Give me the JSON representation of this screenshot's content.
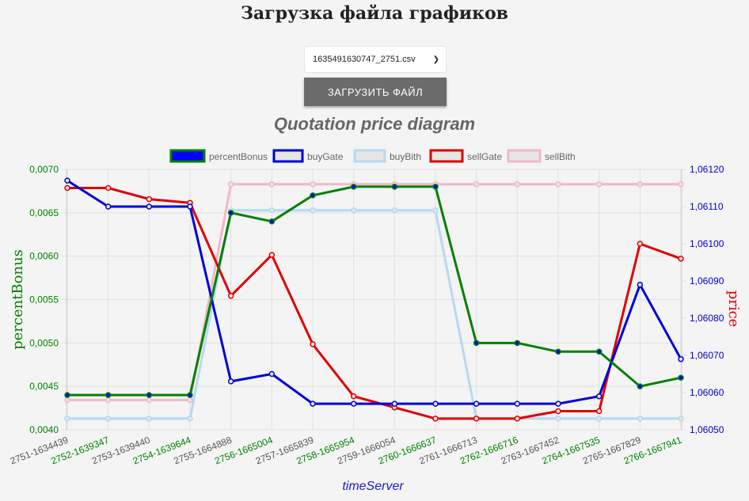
{
  "page": {
    "title": "Загрузка файла графиков",
    "file_select_value": "1635491630747_2751.csv",
    "upload_button_label": "ЗАГРУЗИТЬ ФАЙЛ"
  },
  "chart_data": {
    "type": "line",
    "title": "Quotation price diagram",
    "xlabel": "timeServer",
    "ylabel_left": "percentBonus",
    "ylabel_right": "price",
    "categories": [
      "2751-1634439",
      "2752-1639347",
      "2753-1639440",
      "2754-1639644",
      "2755-1664888",
      "2756-1665004",
      "2757-1665839",
      "2758-1665954",
      "2759-1666054",
      "2760-1666637",
      "2761-1666713",
      "2762-1666716",
      "2763-1667452",
      "2764-1667535",
      "2765-1667829",
      "2766-1667941"
    ],
    "category_label_colors": [
      "#555555",
      "#008000",
      "#555555",
      "#008000",
      "#555555",
      "#008000",
      "#555555",
      "#008000",
      "#555555",
      "#008000",
      "#555555",
      "#008000",
      "#555555",
      "#008000",
      "#555555",
      "#008000"
    ],
    "y_left": {
      "min": 0.004,
      "max": 0.007,
      "ticks": [
        "0,0040",
        "0,0045",
        "0,0050",
        "0,0055",
        "0,0060",
        "0,0065",
        "0,0070"
      ],
      "color": "#008000"
    },
    "y_right": {
      "min": 1.0605,
      "max": 1.0612,
      "ticks": [
        "1,06050",
        "1,06060",
        "1,06070",
        "1,06080",
        "1,06090",
        "1,06100",
        "1,06110",
        "1,06120"
      ],
      "color": "#0000cc"
    },
    "grid": true,
    "legend_position": "top",
    "series": [
      {
        "name": "percentBonus",
        "axis": "left",
        "color": "#008000",
        "fill": "#0000ff",
        "values": [
          0.0044,
          0.0044,
          0.0044,
          0.0044,
          0.0065,
          0.0064,
          0.0067,
          0.0068,
          0.0068,
          0.0068,
          0.005,
          0.005,
          0.0049,
          0.0049,
          0.0045,
          0.0046
        ]
      },
      {
        "name": "buyGate",
        "axis": "right",
        "color": "#0000dd",
        "fill": "#e6e6e6",
        "values": [
          1.06117,
          1.0611,
          1.0611,
          1.0611,
          1.06063,
          1.06065,
          1.06057,
          1.06057,
          1.06057,
          1.06057,
          1.06057,
          1.06057,
          1.06057,
          1.06059,
          1.06089,
          1.06069
        ]
      },
      {
        "name": "buyBith",
        "axis": "right",
        "color": "#b8d8ef",
        "fill": "#e6e6e6",
        "values": [
          1.06053,
          1.06053,
          1.06053,
          1.06053,
          1.06109,
          1.06109,
          1.06109,
          1.06109,
          1.06109,
          1.06109,
          1.06053,
          1.06053,
          1.06053,
          1.06053,
          1.06053,
          1.06053
        ]
      },
      {
        "name": "sellGate",
        "axis": "right",
        "color": "#e00000",
        "fill": "#e6e6e6",
        "values": [
          1.06115,
          1.06115,
          1.06112,
          1.06111,
          1.06086,
          1.06097,
          1.06073,
          1.06059,
          1.06056,
          1.06053,
          1.06053,
          1.06053,
          1.06055,
          1.06055,
          1.061,
          1.06096
        ]
      },
      {
        "name": "sellBith",
        "axis": "right",
        "color": "#f0b8c8",
        "fill": "#e6e6e6",
        "values": [
          1.06058,
          1.06058,
          1.06058,
          1.06058,
          1.06116,
          1.06116,
          1.06116,
          1.06116,
          1.06116,
          1.06116,
          1.06116,
          1.06116,
          1.06116,
          1.06116,
          1.06116,
          1.06116
        ]
      }
    ]
  }
}
